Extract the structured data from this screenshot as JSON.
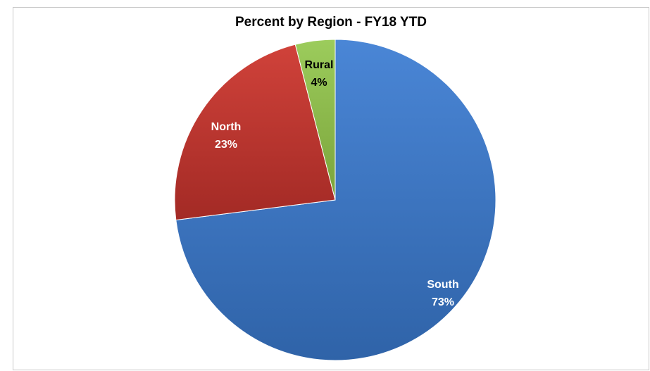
{
  "chart_data": {
    "type": "pie",
    "title": "Percent by Region - FY18 YTD",
    "slices": [
      {
        "name": "South",
        "value": 73,
        "label_name": "South",
        "label_value": "73%",
        "color": "#3b78c6",
        "label_color": "#ffffff"
      },
      {
        "name": "North",
        "value": 23,
        "label_name": "North",
        "label_value": "23%",
        "color": "#c0392f",
        "label_color": "#ffffff"
      },
      {
        "name": "Rural",
        "value": 4,
        "label_name": "Rural",
        "label_value": "4%",
        "color": "#8fb94a",
        "label_color": "#000000"
      }
    ],
    "start": "12 o'clock",
    "direction": "clockwise",
    "legend": "none"
  }
}
